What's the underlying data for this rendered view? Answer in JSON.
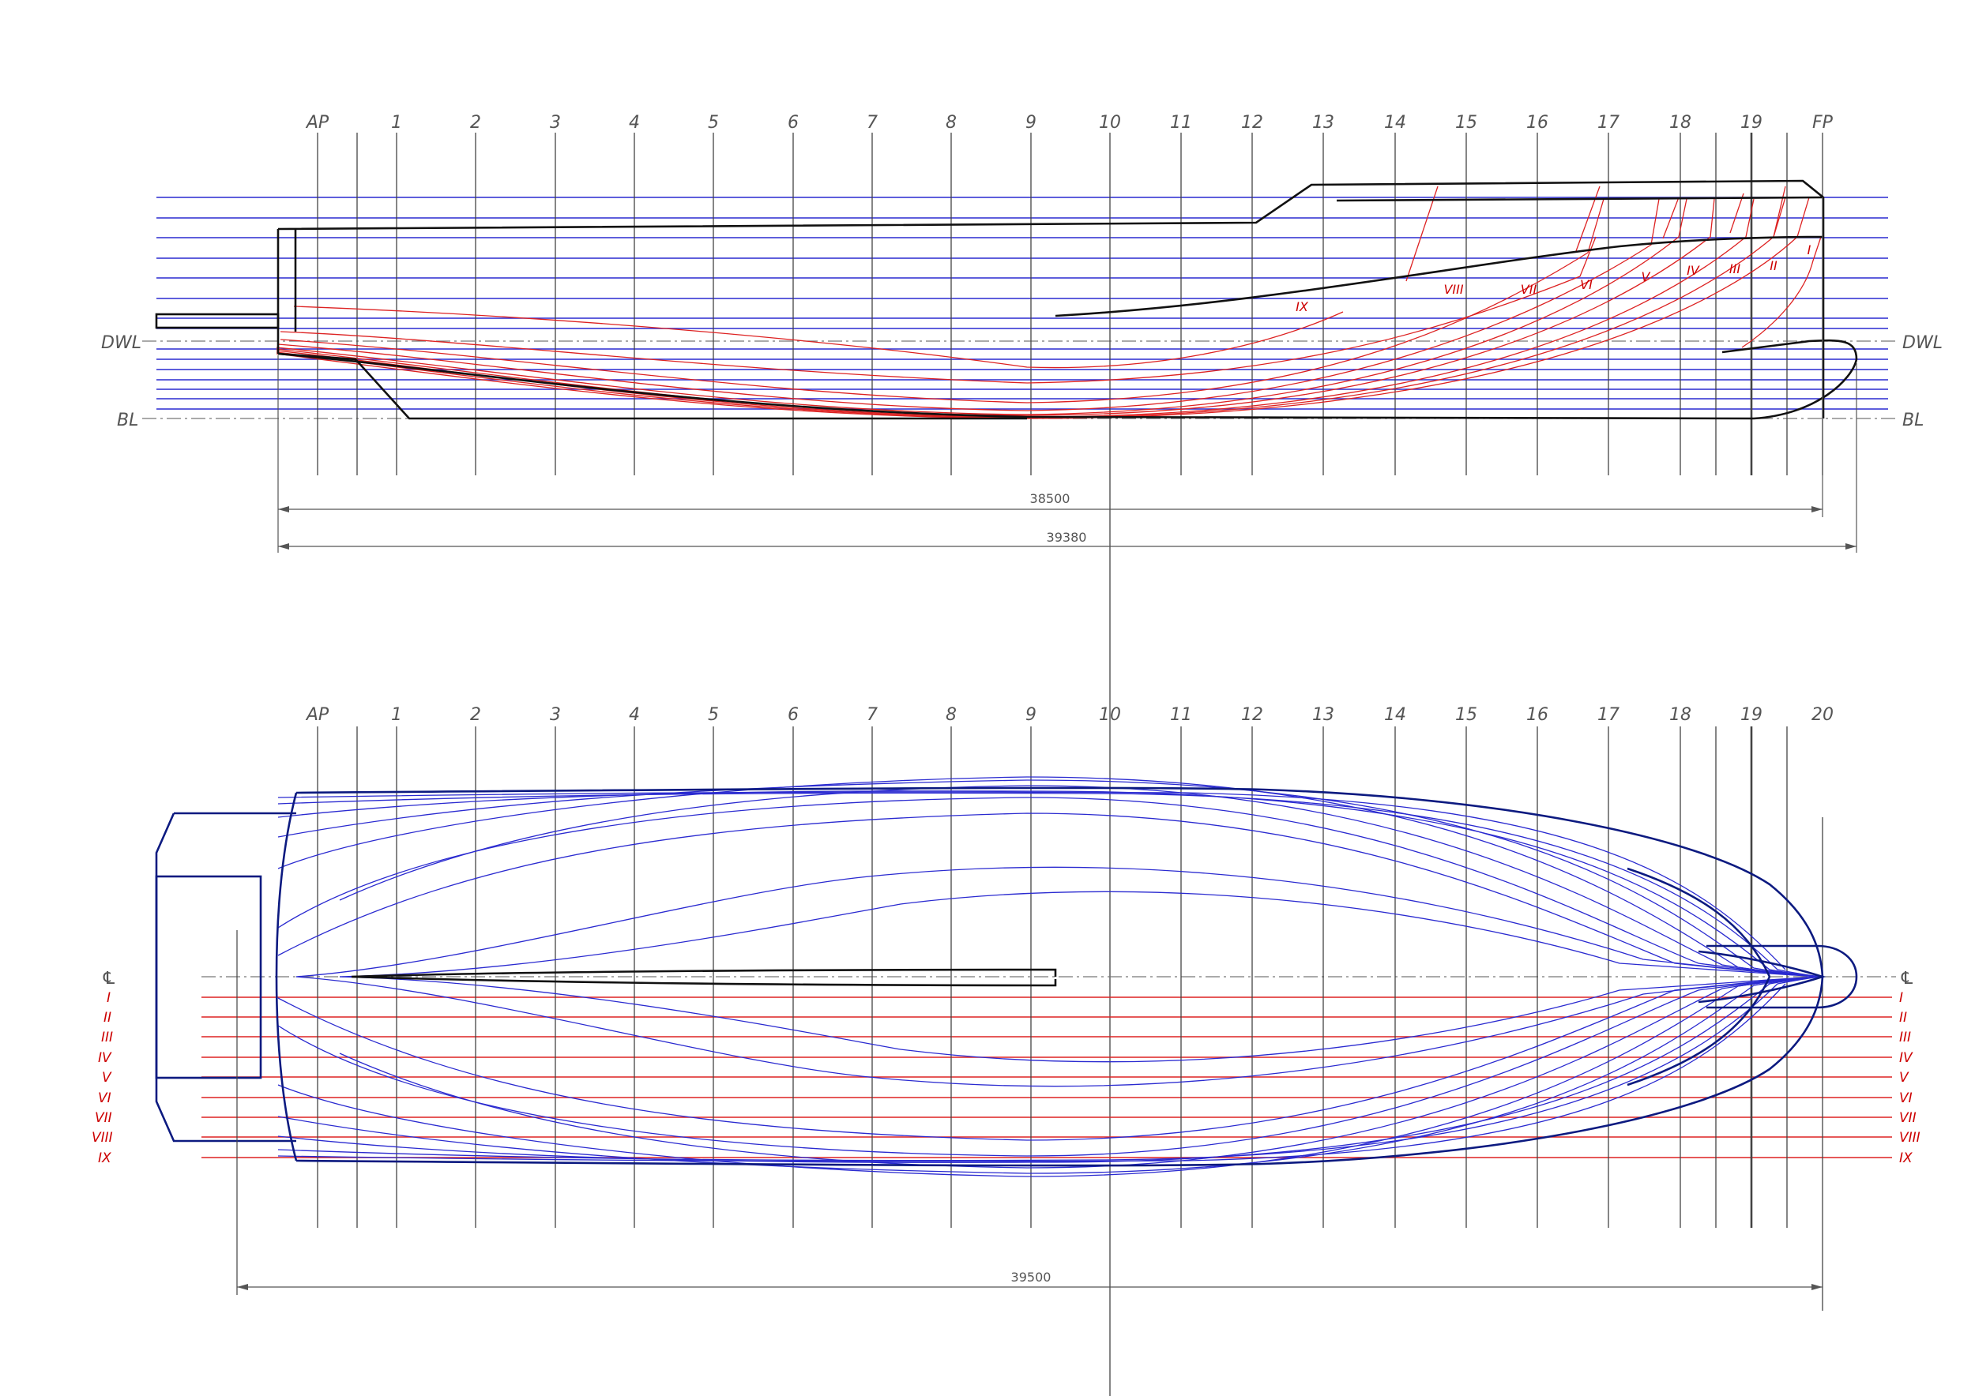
{
  "station_labels_profile": [
    "AP",
    "1",
    "2",
    "3",
    "4",
    "5",
    "6",
    "7",
    "8",
    "9",
    "10",
    "11",
    "12",
    "13",
    "14",
    "15",
    "16",
    "17",
    "18",
    "19",
    "FP"
  ],
  "station_labels_plan": [
    "AP",
    "1",
    "2",
    "3",
    "4",
    "5",
    "6",
    "7",
    "8",
    "9",
    "10",
    "11",
    "12",
    "13",
    "14",
    "15",
    "16",
    "17",
    "18",
    "19",
    "20"
  ],
  "waterline_labels": {
    "dwl": "DWL",
    "bl": "BL"
  },
  "buttock_labels": [
    "I",
    "II",
    "III",
    "IV",
    "V",
    "VI",
    "VII",
    "VIII",
    "IX"
  ],
  "centerline_label": "℄",
  "dimensions": {
    "profile_lwl": "38500",
    "profile_loa": "39380",
    "plan_length": "39500"
  },
  "colors": {
    "hull_outline": "#111111",
    "waterlines": "#2a2ad0",
    "buttocks": "#dd2222",
    "grid": "#444444",
    "plan_outline": "#0c1a80"
  }
}
